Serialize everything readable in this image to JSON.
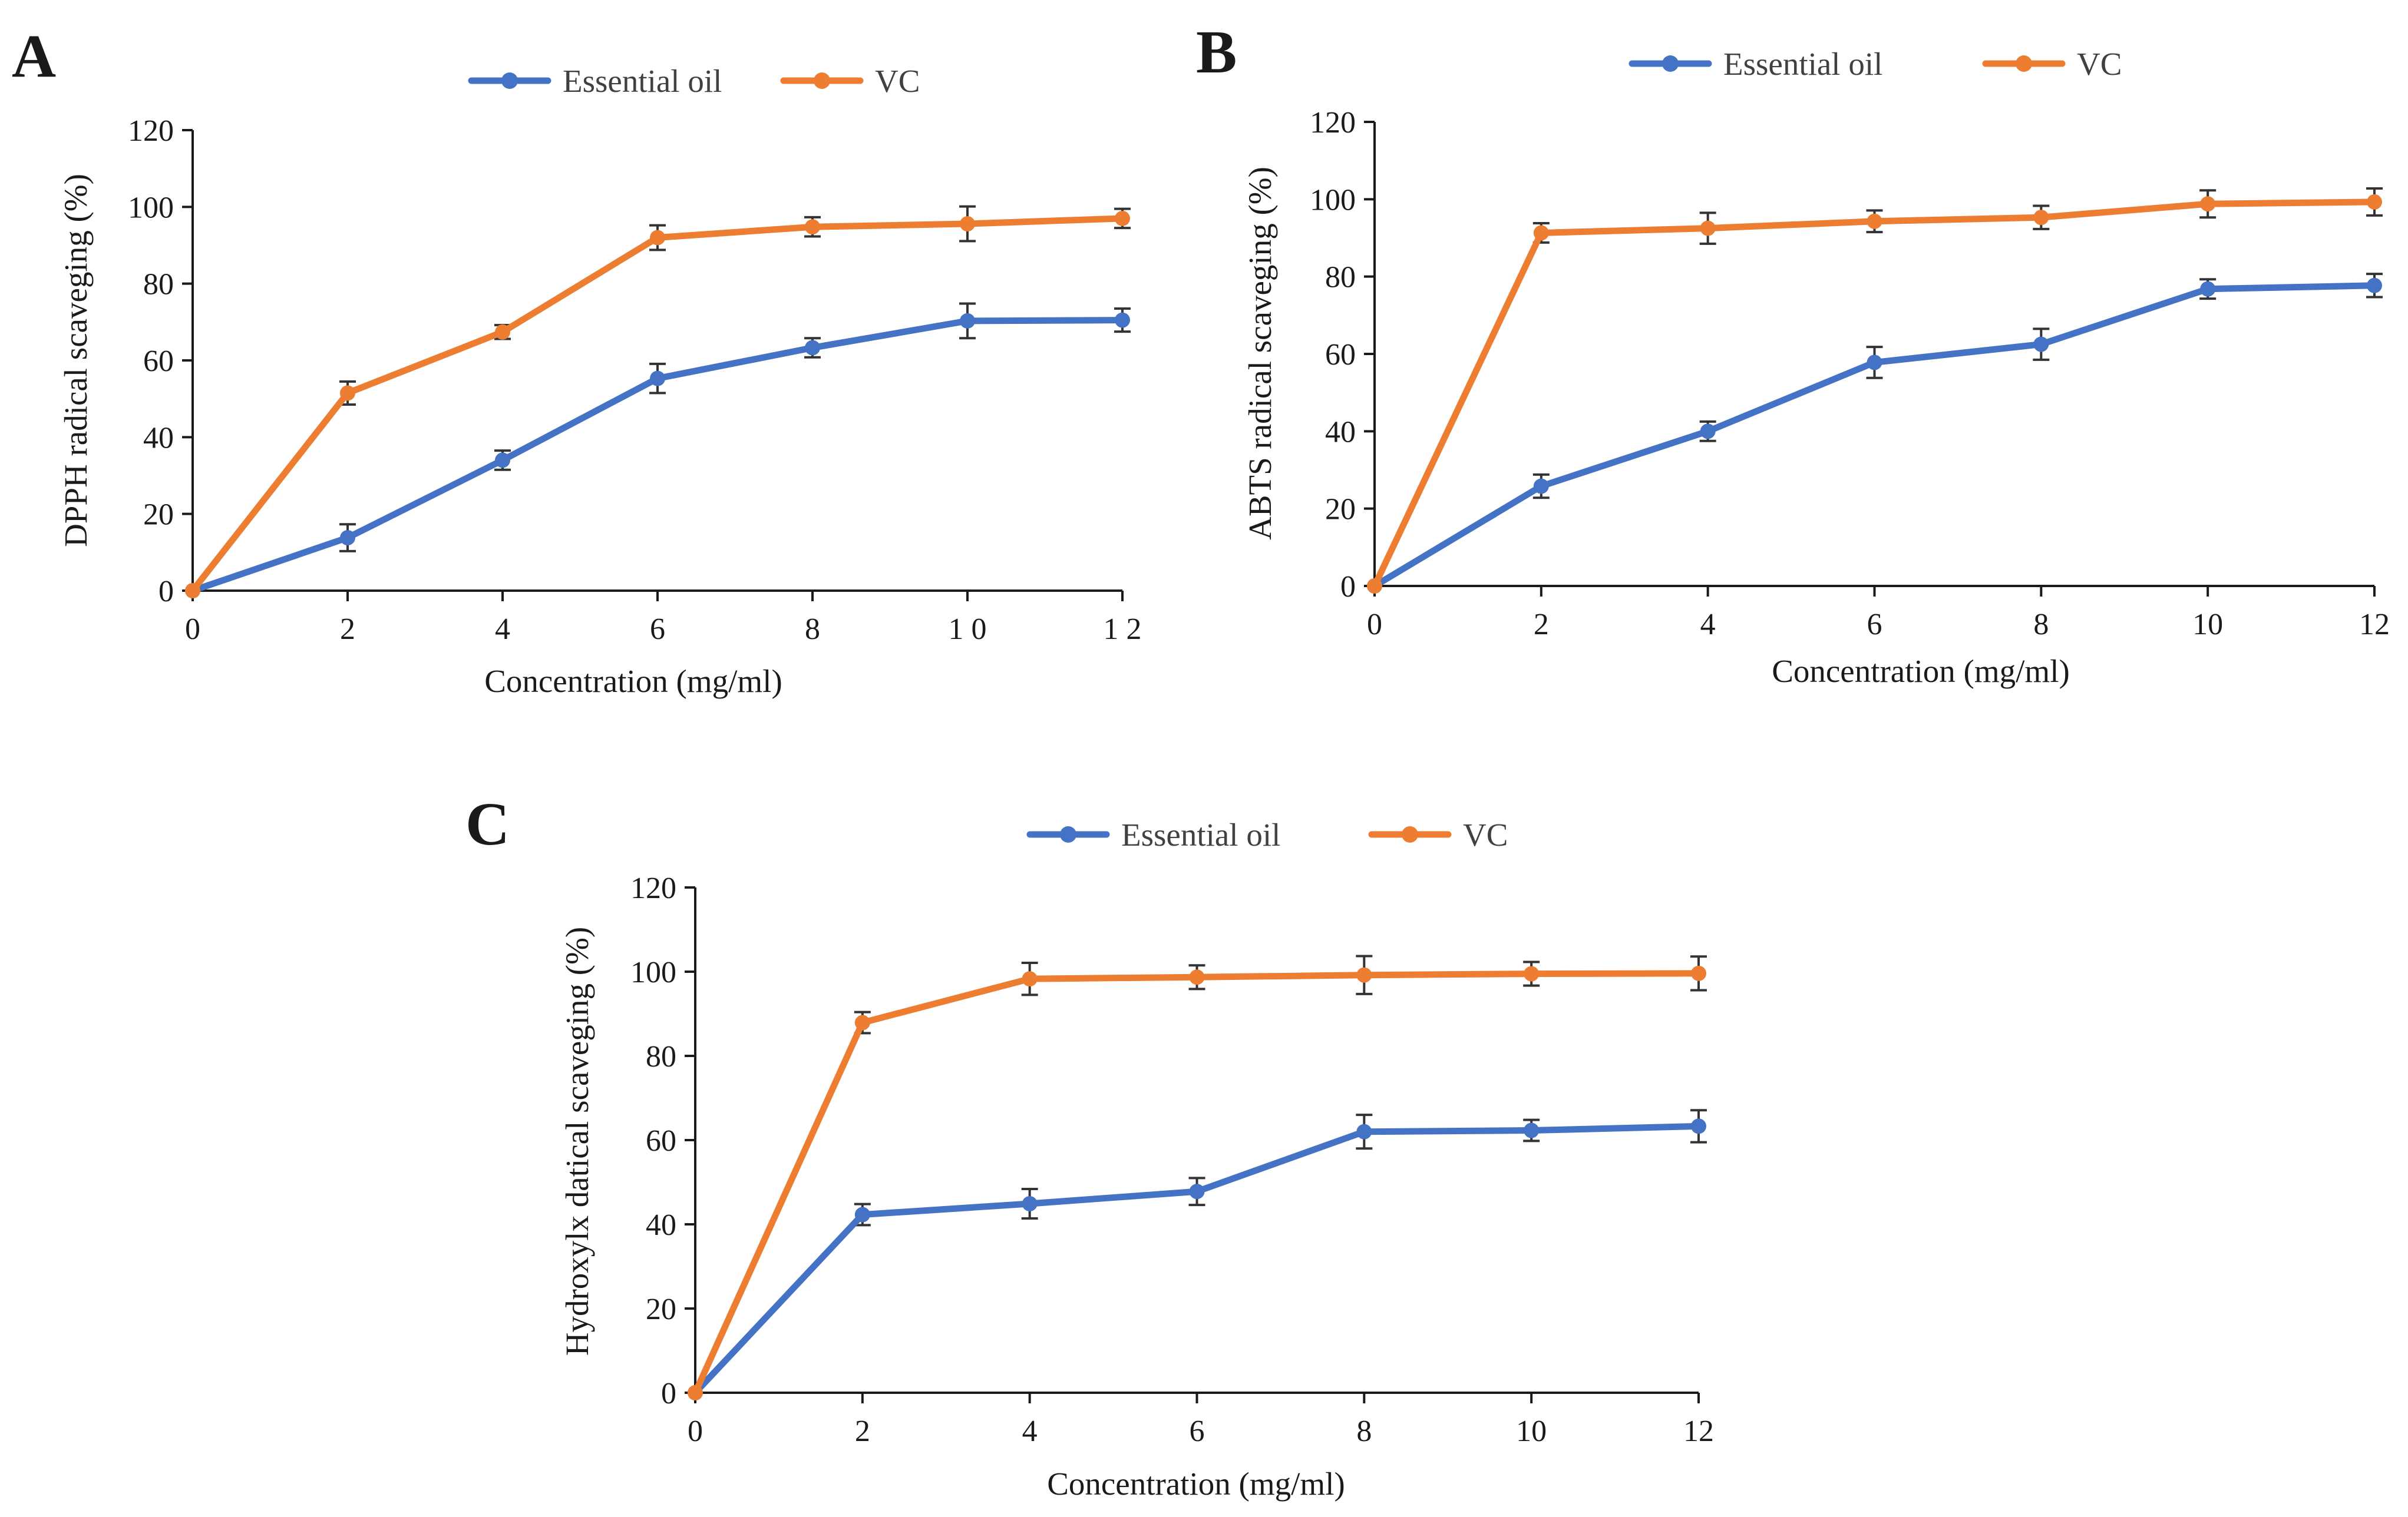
{
  "figure": {
    "colors": {
      "essential_oil": "#4472C4",
      "vc": "#ED7D31",
      "axis": "#1a1a1a",
      "error_bar": "#333333"
    }
  },
  "chart_data": [
    {
      "panel": "A",
      "type": "line",
      "xlabel": "Concentration (mg/ml)",
      "ylabel": "DPPH radical scaveging  (%)",
      "x": [
        0,
        2,
        4,
        6,
        8,
        10,
        12
      ],
      "x_tick_labels": [
        "0",
        "2",
        "4",
        "6",
        "8",
        "1 0",
        "1 2"
      ],
      "ylim": [
        0,
        120
      ],
      "y_ticks": [
        0,
        20,
        40,
        60,
        80,
        100,
        120
      ],
      "legend": "top-center",
      "series": [
        {
          "name": "Essential oil",
          "values": [
            0,
            13.8,
            34.0,
            55.3,
            63.3,
            70.3,
            70.5
          ],
          "errors": [
            0,
            3.5,
            2.5,
            3.8,
            2.5,
            4.5,
            3.0
          ]
        },
        {
          "name": "VC",
          "values": [
            0,
            51.5,
            67.4,
            92.0,
            94.8,
            95.6,
            97.0
          ],
          "errors": [
            0,
            3.0,
            1.8,
            3.2,
            2.5,
            4.5,
            2.5
          ]
        }
      ]
    },
    {
      "panel": "B",
      "type": "line",
      "xlabel": "Concentration (mg/ml)",
      "ylabel": "ABTS radical scaveging  (%)",
      "x": [
        0,
        2,
        4,
        6,
        8,
        10,
        12
      ],
      "x_tick_labels": [
        "0",
        "2",
        "4",
        "6",
        "8",
        "10",
        "12"
      ],
      "ylim": [
        0,
        120
      ],
      "y_ticks": [
        0,
        20,
        40,
        60,
        80,
        100,
        120
      ],
      "legend": "top-center",
      "series": [
        {
          "name": "Essential oil",
          "values": [
            0,
            25.8,
            40.0,
            57.8,
            62.5,
            76.8,
            77.7
          ],
          "errors": [
            0,
            3.0,
            2.5,
            4.0,
            4.0,
            2.5,
            3.0
          ]
        },
        {
          "name": "VC",
          "values": [
            0,
            91.3,
            92.5,
            94.3,
            95.3,
            98.8,
            99.3
          ],
          "errors": [
            0,
            2.5,
            4.0,
            2.8,
            3.0,
            3.5,
            3.5
          ]
        }
      ]
    },
    {
      "panel": "C",
      "type": "line",
      "xlabel": "Concentration (mg/ml)",
      "ylabel": "Hydroxylx datical scaveging  (%)",
      "x": [
        0,
        2,
        4,
        6,
        8,
        10,
        12
      ],
      "x_tick_labels": [
        "0",
        "2",
        "4",
        "6",
        "8",
        "10",
        "12"
      ],
      "ylim": [
        0,
        120
      ],
      "y_ticks": [
        0,
        20,
        40,
        60,
        80,
        100,
        120
      ],
      "legend": "top-center",
      "series": [
        {
          "name": "Essential oil",
          "values": [
            0,
            42.3,
            44.9,
            47.8,
            62.0,
            62.3,
            63.3
          ],
          "errors": [
            0,
            2.5,
            3.5,
            3.2,
            4.0,
            2.5,
            3.8
          ]
        },
        {
          "name": "VC",
          "values": [
            0,
            87.9,
            98.3,
            98.7,
            99.2,
            99.5,
            99.6
          ],
          "errors": [
            0,
            2.5,
            3.8,
            2.8,
            4.5,
            2.8,
            4.0
          ]
        }
      ]
    }
  ]
}
